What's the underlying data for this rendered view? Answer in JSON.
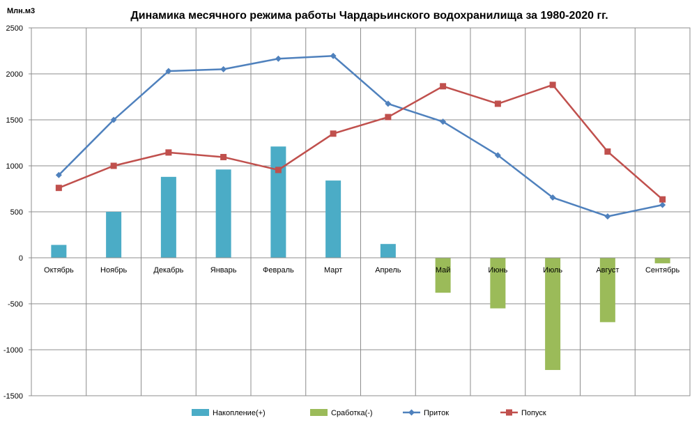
{
  "chart_data": {
    "type": "bar+line",
    "title": "Динамика месячного режима работы Чардарьинского водохранилища за 1980-2020 гг.",
    "ylabel": "Млн.м3",
    "xlabel": "",
    "ylim": [
      -1500,
      2500
    ],
    "yticks": [
      2500,
      2000,
      1500,
      1000,
      500,
      0,
      -500,
      -1000,
      -1500
    ],
    "ytick_labels": [
      "2500",
      "2000",
      "1500",
      "1000",
      "500",
      "0",
      "-500",
      "-1000",
      "-1500"
    ],
    "grid": true,
    "legend_position": "bottom",
    "categories": [
      "Октябрь",
      "Ноябрь",
      "Декабрь",
      "Январь",
      "Февраль",
      "Март",
      "Апрель",
      "Май",
      "Июнь",
      "Июль",
      "Август",
      "Сентябрь"
    ],
    "series": [
      {
        "name": "Накопление(+)",
        "kind": "bar",
        "color": "#4BACC6",
        "values": [
          140,
          500,
          880,
          960,
          1210,
          840,
          150,
          null,
          null,
          null,
          null,
          null
        ]
      },
      {
        "name": "Сработка(-)",
        "kind": "bar",
        "color": "#9BBB59",
        "values": [
          null,
          null,
          null,
          null,
          null,
          null,
          null,
          -380,
          -550,
          -1220,
          -700,
          -60
        ]
      },
      {
        "name": "Приток",
        "kind": "line",
        "marker": "diamond",
        "color": "#4F81BD",
        "values": [
          900,
          1500,
          2030,
          2050,
          2165,
          2195,
          1675,
          1480,
          1115,
          655,
          450,
          575
        ]
      },
      {
        "name": "Попуск",
        "kind": "line",
        "marker": "square",
        "color": "#C0504D",
        "values": [
          760,
          1000,
          1145,
          1095,
          955,
          1350,
          1530,
          1865,
          1675,
          1880,
          1155,
          635
        ]
      }
    ]
  }
}
